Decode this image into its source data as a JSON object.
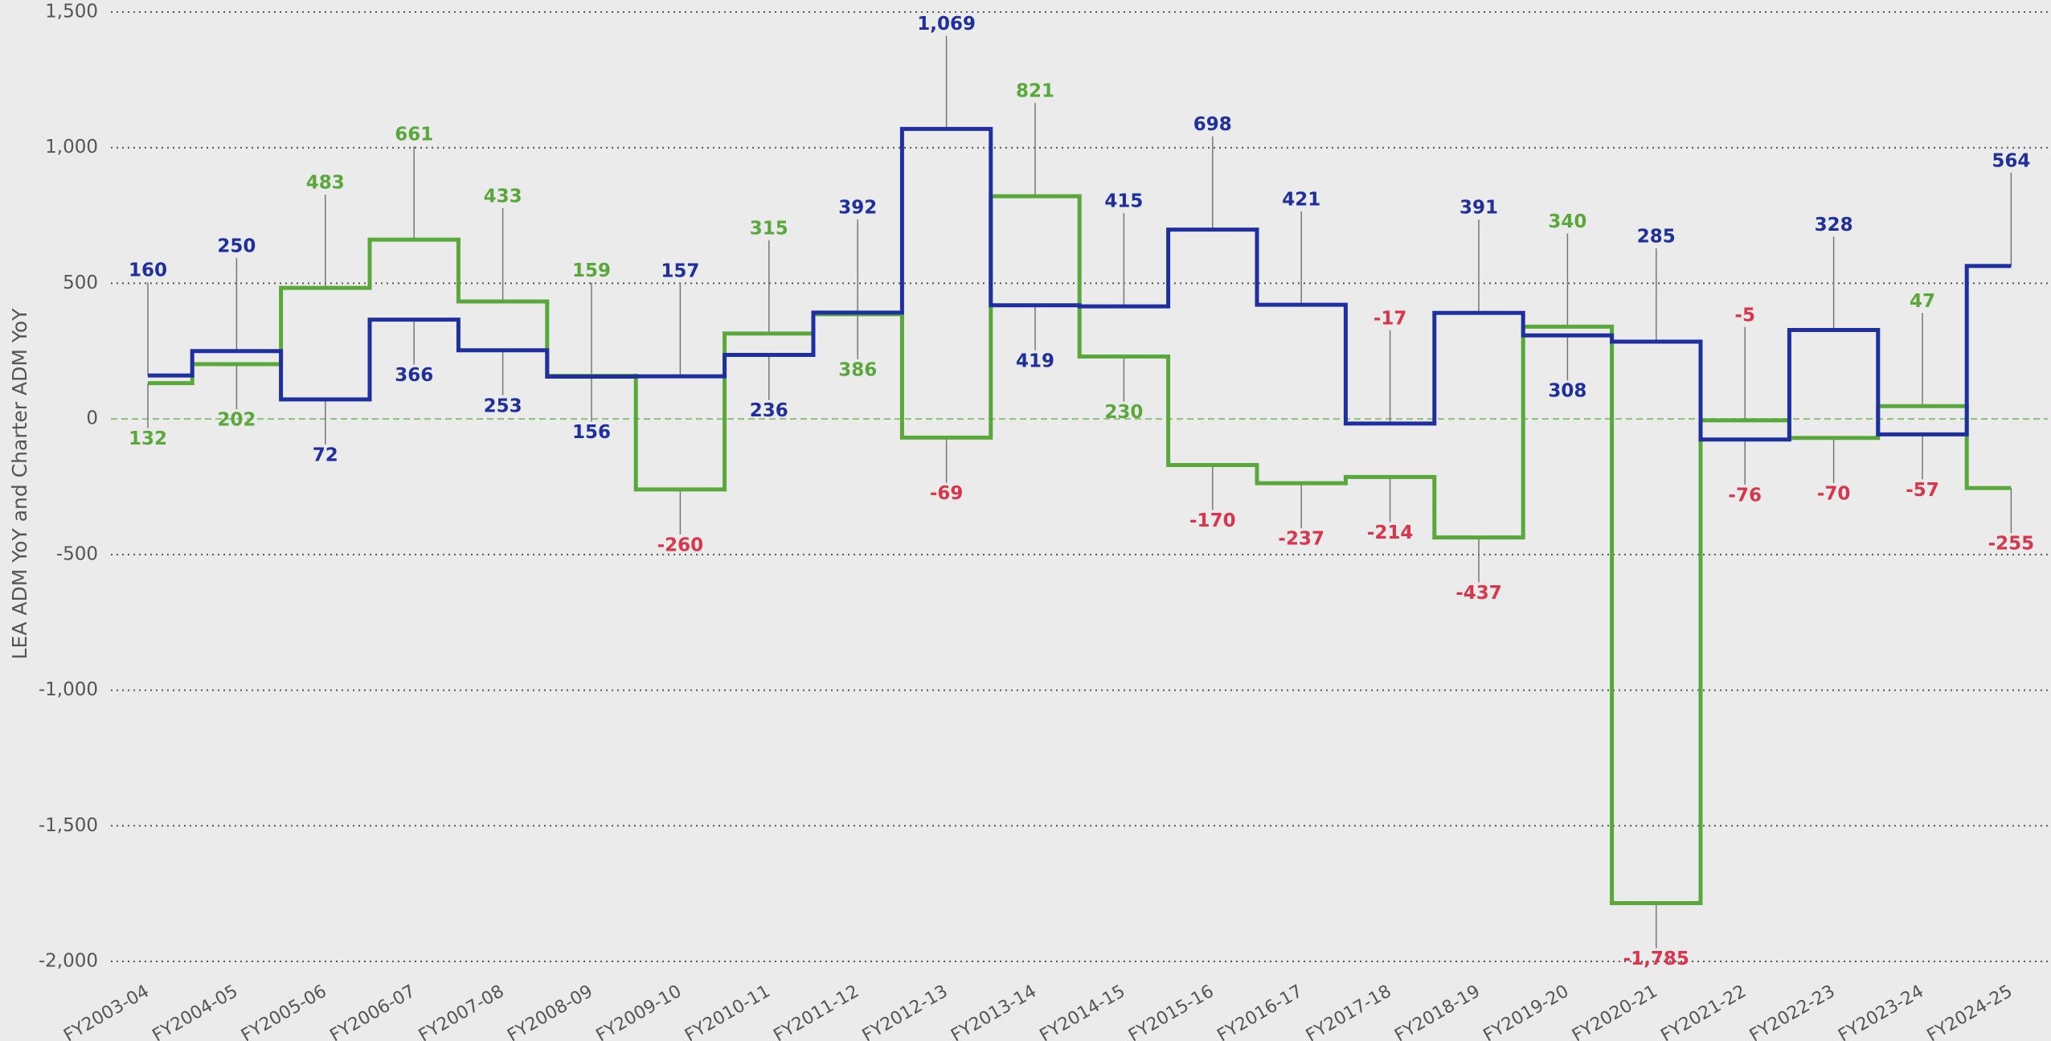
{
  "chart_data": {
    "type": "step",
    "y_label": "LEA ADM YoY and Charter ADM YoY",
    "categories": [
      "FY2003-04",
      "FY2004-05",
      "FY2005-06",
      "FY2006-07",
      "FY2007-08",
      "FY2008-09",
      "FY2009-10",
      "FY2010-11",
      "FY2011-12",
      "FY2012-13",
      "FY2013-14",
      "FY2014-15",
      "FY2015-16",
      "FY2016-17",
      "FY2017-18",
      "FY2018-19",
      "FY2019-20",
      "FY2020-21",
      "FY2021-22",
      "FY2022-23",
      "FY2023-24",
      "FY2024-25"
    ],
    "series": [
      {
        "color": "#1f2f9e",
        "values": [
          160,
          250,
          72,
          366,
          253,
          156,
          157,
          236,
          392,
          1069,
          419,
          415,
          698,
          421,
          -17,
          391,
          308,
          285,
          -76,
          328,
          -57,
          564
        ],
        "value_labels": [
          "160",
          "250",
          "72",
          "366",
          "253",
          "156",
          "157",
          "236",
          "392",
          "1,069",
          "419",
          "415",
          "698",
          "421",
          "-17",
          "391",
          "308",
          "285",
          "-76",
          "328",
          "-57",
          "564"
        ]
      },
      {
        "color": "#5aa83c",
        "values": [
          132,
          202,
          483,
          661,
          433,
          159,
          -260,
          315,
          386,
          -69,
          821,
          230,
          -170,
          -237,
          -214,
          -437,
          340,
          -1785,
          -5,
          -70,
          47,
          -255
        ],
        "value_labels": [
          "132",
          "202",
          "483",
          "661",
          "433",
          "159",
          "-260",
          "315",
          "386",
          "-69",
          "821",
          "230",
          "-170",
          "-237",
          "-214",
          "-437",
          "340",
          "-1,785",
          "-5",
          "-70",
          "47",
          "-255"
        ]
      }
    ],
    "negative_label_color": "#d9364b",
    "ylim": [
      -2000,
      1500
    ],
    "yticks": [
      {
        "value": -2000,
        "label": "-2,000"
      },
      {
        "value": -1500,
        "label": "-1,500"
      },
      {
        "value": -1000,
        "label": "-1,000"
      },
      -500,
      0,
      500,
      {
        "value": 1000,
        "label": "1,000"
      },
      {
        "value": 1500,
        "label": "1,500"
      }
    ],
    "grid": true
  }
}
